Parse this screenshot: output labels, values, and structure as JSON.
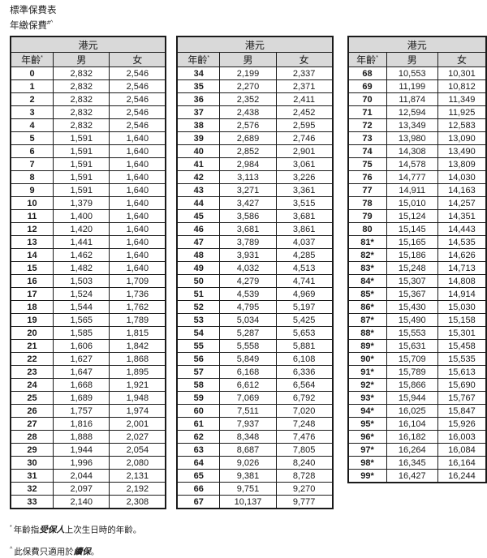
{
  "page": {
    "title": "標準保費表",
    "subtitle_text": "年繳保費",
    "subtitle_superscript": "#^"
  },
  "table_headers": {
    "currency": "港元",
    "age_label": "年齡",
    "age_superscript": "*",
    "male_label": "男",
    "female_label": "女"
  },
  "colors": {
    "header_bg": "#d9d9d9",
    "border": "#1a1a1a",
    "text": "#1a1a1a"
  },
  "tables": [
    {
      "rows": [
        [
          "0",
          "2,832",
          "2,546"
        ],
        [
          "1",
          "2,832",
          "2,546"
        ],
        [
          "2",
          "2,832",
          "2,546"
        ],
        [
          "3",
          "2,832",
          "2,546"
        ],
        [
          "4",
          "2,832",
          "2,546"
        ],
        [
          "5",
          "1,591",
          "1,640"
        ],
        [
          "6",
          "1,591",
          "1,640"
        ],
        [
          "7",
          "1,591",
          "1,640"
        ],
        [
          "8",
          "1,591",
          "1,640"
        ],
        [
          "9",
          "1,591",
          "1,640"
        ],
        [
          "10",
          "1,379",
          "1,640"
        ],
        [
          "11",
          "1,400",
          "1,640"
        ],
        [
          "12",
          "1,420",
          "1,640"
        ],
        [
          "13",
          "1,441",
          "1,640"
        ],
        [
          "14",
          "1,462",
          "1,640"
        ],
        [
          "15",
          "1,482",
          "1,640"
        ],
        [
          "16",
          "1,503",
          "1,709"
        ],
        [
          "17",
          "1,524",
          "1,736"
        ],
        [
          "18",
          "1,544",
          "1,762"
        ],
        [
          "19",
          "1,565",
          "1,789"
        ],
        [
          "20",
          "1,585",
          "1,815"
        ],
        [
          "21",
          "1,606",
          "1,842"
        ],
        [
          "22",
          "1,627",
          "1,868"
        ],
        [
          "23",
          "1,647",
          "1,895"
        ],
        [
          "24",
          "1,668",
          "1,921"
        ],
        [
          "25",
          "1,689",
          "1,948"
        ],
        [
          "26",
          "1,757",
          "1,974"
        ],
        [
          "27",
          "1,816",
          "2,001"
        ],
        [
          "28",
          "1,888",
          "2,027"
        ],
        [
          "29",
          "1,944",
          "2,054"
        ],
        [
          "30",
          "1,996",
          "2,080"
        ],
        [
          "31",
          "2,044",
          "2,131"
        ],
        [
          "32",
          "2,097",
          "2,192"
        ],
        [
          "33",
          "2,140",
          "2,308"
        ]
      ]
    },
    {
      "rows": [
        [
          "34",
          "2,199",
          "2,337"
        ],
        [
          "35",
          "2,270",
          "2,371"
        ],
        [
          "36",
          "2,352",
          "2,411"
        ],
        [
          "37",
          "2,438",
          "2,452"
        ],
        [
          "38",
          "2,576",
          "2,595"
        ],
        [
          "39",
          "2,689",
          "2,746"
        ],
        [
          "40",
          "2,852",
          "2,901"
        ],
        [
          "41",
          "2,984",
          "3,061"
        ],
        [
          "42",
          "3,113",
          "3,226"
        ],
        [
          "43",
          "3,271",
          "3,361"
        ],
        [
          "44",
          "3,427",
          "3,515"
        ],
        [
          "45",
          "3,586",
          "3,681"
        ],
        [
          "46",
          "3,681",
          "3,861"
        ],
        [
          "47",
          "3,789",
          "4,037"
        ],
        [
          "48",
          "3,931",
          "4,285"
        ],
        [
          "49",
          "4,032",
          "4,513"
        ],
        [
          "50",
          "4,279",
          "4,741"
        ],
        [
          "51",
          "4,539",
          "4,969"
        ],
        [
          "52",
          "4,795",
          "5,197"
        ],
        [
          "53",
          "5,034",
          "5,425"
        ],
        [
          "54",
          "5,287",
          "5,653"
        ],
        [
          "55",
          "5,558",
          "5,881"
        ],
        [
          "56",
          "5,849",
          "6,108"
        ],
        [
          "57",
          "6,168",
          "6,336"
        ],
        [
          "58",
          "6,612",
          "6,564"
        ],
        [
          "59",
          "7,069",
          "6,792"
        ],
        [
          "60",
          "7,511",
          "7,020"
        ],
        [
          "61",
          "7,937",
          "7,248"
        ],
        [
          "62",
          "8,348",
          "7,476"
        ],
        [
          "63",
          "8,687",
          "7,805"
        ],
        [
          "64",
          "9,026",
          "8,240"
        ],
        [
          "65",
          "9,381",
          "8,728"
        ],
        [
          "66",
          "9,751",
          "9,270"
        ],
        [
          "67",
          "10,137",
          "9,777"
        ]
      ]
    },
    {
      "rows": [
        [
          "68",
          "10,553",
          "10,301"
        ],
        [
          "69",
          "11,199",
          "10,812"
        ],
        [
          "70",
          "11,874",
          "11,349"
        ],
        [
          "71",
          "12,594",
          "11,925"
        ],
        [
          "72",
          "13,349",
          "12,583"
        ],
        [
          "73",
          "13,980",
          "13,090"
        ],
        [
          "74",
          "14,308",
          "13,490"
        ],
        [
          "75",
          "14,578",
          "13,809"
        ],
        [
          "76",
          "14,777",
          "14,030"
        ],
        [
          "77",
          "14,911",
          "14,163"
        ],
        [
          "78",
          "15,010",
          "14,257"
        ],
        [
          "79",
          "15,124",
          "14,351"
        ],
        [
          "80",
          "15,145",
          "14,443"
        ],
        [
          "81*",
          "15,165",
          "14,535"
        ],
        [
          "82*",
          "15,186",
          "14,626"
        ],
        [
          "83*",
          "15,248",
          "14,713"
        ],
        [
          "84*",
          "15,307",
          "14,808"
        ],
        [
          "85*",
          "15,367",
          "14,914"
        ],
        [
          "86*",
          "15,430",
          "15,030"
        ],
        [
          "87*",
          "15,490",
          "15,158"
        ],
        [
          "88*",
          "15,553",
          "15,301"
        ],
        [
          "89*",
          "15,631",
          "15,458"
        ],
        [
          "90*",
          "15,709",
          "15,535"
        ],
        [
          "91*",
          "15,789",
          "15,613"
        ],
        [
          "92*",
          "15,866",
          "15,690"
        ],
        [
          "93*",
          "15,944",
          "15,767"
        ],
        [
          "94*",
          "16,025",
          "15,847"
        ],
        [
          "95*",
          "16,104",
          "15,926"
        ],
        [
          "96*",
          "16,182",
          "16,003"
        ],
        [
          "97*",
          "16,264",
          "16,084"
        ],
        [
          "98*",
          "16,345",
          "16,164"
        ],
        [
          "99*",
          "16,427",
          "16,244"
        ]
      ]
    }
  ],
  "footnotes": [
    {
      "marker": "*",
      "before": "年齡指",
      "emphasis": "受保人",
      "after": "上次生日時的年齡。"
    },
    {
      "marker": "^",
      "before": "此保費只適用於",
      "emphasis": "續保",
      "after": "。"
    }
  ]
}
